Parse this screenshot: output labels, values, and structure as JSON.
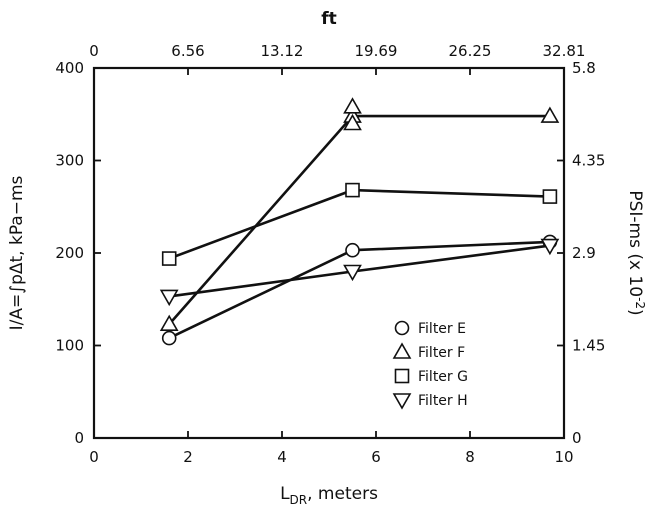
{
  "chart_data": {
    "type": "line",
    "title": "",
    "xlabel": "L",
    "xlabel_sub": "DR",
    "xlabel_suffix": ", meters",
    "ylabel": "I/A=∫pΔt, kPa−ms",
    "top_axis_label": "ft",
    "right_axis_label": "PSI-ms (x 10",
    "right_axis_label_sup": "-2",
    "right_axis_label_end": ")",
    "xlim": [
      0,
      10
    ],
    "ylim": [
      0,
      400
    ],
    "x_ticks": [
      "0",
      "2",
      "4",
      "6",
      "8",
      "10"
    ],
    "y_ticks": [
      "0",
      "100",
      "200",
      "300",
      "400"
    ],
    "top_ticks": [
      "0",
      "6.56",
      "13.12",
      "19.69",
      "26.25",
      "32.81"
    ],
    "right_ticks": [
      "0",
      "1.45",
      "2.9",
      "4.35",
      "5.8"
    ],
    "legend_position": "inside-right",
    "series": [
      {
        "name": "Filter E",
        "marker": "circle",
        "x": [
          1.6,
          5.5,
          9.7
        ],
        "y": [
          108,
          203,
          212
        ]
      },
      {
        "name": "Filter F",
        "marker": "triangle-up",
        "x": [
          1.6,
          5.5,
          9.7
        ],
        "y": [
          123,
          348,
          348
        ],
        "extra_points": [
          [
            5.5,
            340
          ],
          [
            5.5,
            358
          ]
        ]
      },
      {
        "name": "Filter G",
        "marker": "square",
        "x": [
          1.6,
          5.5,
          9.7
        ],
        "y": [
          194,
          268,
          261
        ]
      },
      {
        "name": "Filter H",
        "marker": "triangle-down",
        "x": [
          1.6,
          5.5,
          9.7
        ],
        "y": [
          153,
          180,
          208
        ]
      }
    ]
  }
}
